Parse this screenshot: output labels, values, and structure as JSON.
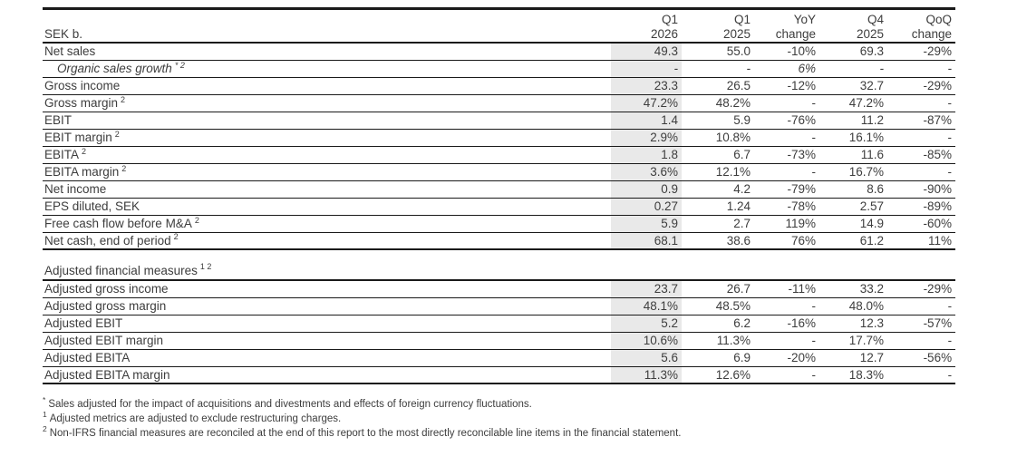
{
  "table1": {
    "header": {
      "label": "SEK b.",
      "cols": [
        {
          "line1": "Q1",
          "line2": "2026"
        },
        {
          "line1": "Q1",
          "line2": "2025"
        },
        {
          "line1": "YoY",
          "line2": "change"
        },
        {
          "line1": "Q4",
          "line2": "2025"
        },
        {
          "line1": "QoQ",
          "line2": "change"
        }
      ]
    },
    "rows": [
      {
        "label": "Net sales",
        "sup": "",
        "italic": false,
        "values": [
          "49.3",
          "55.0",
          "-10%",
          "69.3",
          "-29%"
        ]
      },
      {
        "label": "Organic sales growth",
        "sup": "* 2",
        "italic": true,
        "values": [
          "-",
          "-",
          "6%",
          "-",
          "-"
        ]
      },
      {
        "label": "Gross income",
        "sup": "",
        "italic": false,
        "values": [
          "23.3",
          "26.5",
          "-12%",
          "32.7",
          "-29%"
        ]
      },
      {
        "label": "Gross margin",
        "sup": "2",
        "italic": false,
        "values": [
          "47.2%",
          "48.2%",
          "-",
          "47.2%",
          "-"
        ]
      },
      {
        "label": "EBIT",
        "sup": "",
        "italic": false,
        "values": [
          "1.4",
          "5.9",
          "-76%",
          "11.2",
          "-87%"
        ]
      },
      {
        "label": "EBIT margin",
        "sup": "2",
        "italic": false,
        "values": [
          "2.9%",
          "10.8%",
          "-",
          "16.1%",
          "-"
        ]
      },
      {
        "label": "EBITA",
        "sup": "2",
        "italic": false,
        "values": [
          "1.8",
          "6.7",
          "-73%",
          "11.6",
          "-85%"
        ]
      },
      {
        "label": "EBITA margin",
        "sup": "2",
        "italic": false,
        "values": [
          "3.6%",
          "12.1%",
          "-",
          "16.7%",
          "-"
        ]
      },
      {
        "label": "Net income",
        "sup": "",
        "italic": false,
        "values": [
          "0.9",
          "4.2",
          "-79%",
          "8.6",
          "-90%"
        ]
      },
      {
        "label": "EPS diluted, SEK",
        "sup": "",
        "italic": false,
        "values": [
          "0.27",
          "1.24",
          "-78%",
          "2.57",
          "-89%"
        ]
      },
      {
        "label": "Free cash flow before M&A",
        "sup": "2",
        "italic": false,
        "values": [
          "5.9",
          "2.7",
          "119%",
          "14.9",
          "-60%"
        ]
      },
      {
        "label": "Net cash, end of period",
        "sup": "2",
        "italic": false,
        "values": [
          "68.1",
          "38.6",
          "76%",
          "61.2",
          "11%"
        ]
      }
    ]
  },
  "table2": {
    "heading": "Adjusted financial measures",
    "heading_sup": "1 2",
    "rows": [
      {
        "label": "Adjusted gross income",
        "sup": "",
        "italic": false,
        "values": [
          "23.7",
          "26.7",
          "-11%",
          "33.2",
          "-29%"
        ]
      },
      {
        "label": "Adjusted gross margin",
        "sup": "",
        "italic": false,
        "values": [
          "48.1%",
          "48.5%",
          "-",
          "48.0%",
          "-"
        ]
      },
      {
        "label": "Adjusted EBIT",
        "sup": "",
        "italic": false,
        "values": [
          "5.2",
          "6.2",
          "-16%",
          "12.3",
          "-57%"
        ]
      },
      {
        "label": "Adjusted EBIT margin",
        "sup": "",
        "italic": false,
        "values": [
          "10.6%",
          "11.3%",
          "-",
          "17.7%",
          "-"
        ]
      },
      {
        "label": "Adjusted EBITA",
        "sup": "",
        "italic": false,
        "values": [
          "5.6",
          "6.9",
          "-20%",
          "12.7",
          "-56%"
        ]
      },
      {
        "label": "Adjusted EBITA margin",
        "sup": "",
        "italic": false,
        "values": [
          "11.3%",
          "12.6%",
          "-",
          "18.3%",
          "-"
        ]
      }
    ]
  },
  "footnotes": [
    {
      "marker": "*",
      "text": "Sales adjusted for the impact of acquisitions and divestments and effects of foreign currency fluctuations."
    },
    {
      "marker": "1",
      "text": "Adjusted metrics are adjusted to exclude restructuring charges."
    },
    {
      "marker": "2",
      "text": "Non-IFRS financial measures are reconciled at the end of this report to the most directly reconcilable line items in the financial statement."
    }
  ],
  "colors": {
    "highlight_column": "#e9e9e9",
    "text": "#3d3d3d",
    "rule": "#1a1a1a"
  }
}
